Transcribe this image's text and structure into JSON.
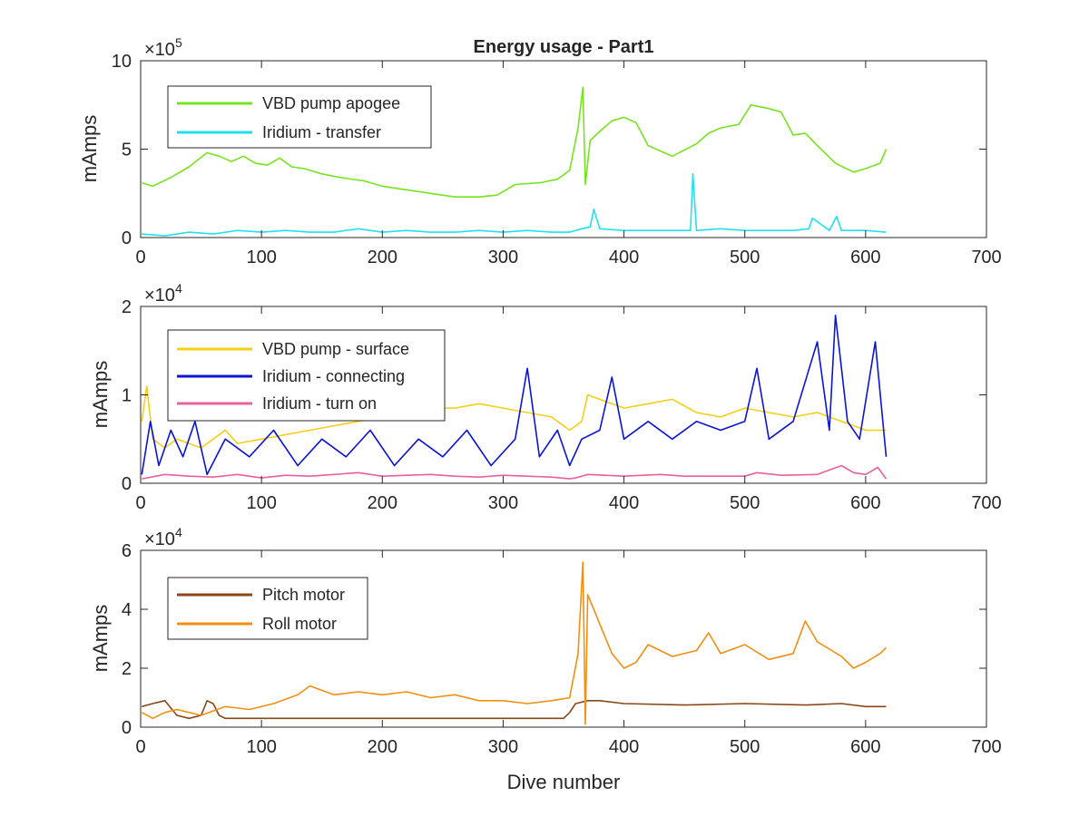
{
  "figure": {
    "title": "Energy usage - Part1",
    "xlabel": "Dive number"
  },
  "chart_data": [
    {
      "type": "line",
      "title": "Energy usage - Part1",
      "xlabel": "",
      "ylabel": "mAmps",
      "exponent_base": "×10",
      "exponent_power": "5",
      "xlim": [
        0,
        700
      ],
      "ylim": [
        0,
        10
      ],
      "xticks": [
        0,
        100,
        200,
        300,
        400,
        500,
        600,
        700
      ],
      "yticks": [
        0,
        5,
        10
      ],
      "legend_position": "top-left",
      "series": [
        {
          "name": "VBD pump apogee",
          "color": "#77e31f",
          "x": [
            1,
            10,
            25,
            40,
            55,
            65,
            75,
            85,
            95,
            105,
            115,
            125,
            135,
            150,
            165,
            185,
            200,
            220,
            240,
            260,
            280,
            295,
            310,
            330,
            345,
            355,
            362,
            366,
            368,
            372,
            380,
            390,
            400,
            410,
            420,
            440,
            460,
            470,
            480,
            495,
            505,
            520,
            530,
            540,
            550,
            560,
            575,
            590,
            600,
            612,
            617
          ],
          "y": [
            3.1,
            2.9,
            3.4,
            4.0,
            4.8,
            4.6,
            4.3,
            4.6,
            4.2,
            4.1,
            4.5,
            4.0,
            3.9,
            3.6,
            3.4,
            3.2,
            2.9,
            2.7,
            2.5,
            2.3,
            2.3,
            2.4,
            3.0,
            3.1,
            3.3,
            3.8,
            6.2,
            8.5,
            3.0,
            5.5,
            6.0,
            6.6,
            6.8,
            6.5,
            5.2,
            4.6,
            5.3,
            5.9,
            6.2,
            6.4,
            7.5,
            7.3,
            7.1,
            5.8,
            5.9,
            5.2,
            4.2,
            3.7,
            3.9,
            4.2,
            5.0
          ]
        },
        {
          "name": "Iridium - transfer",
          "color": "#22e0f0",
          "x": [
            1,
            20,
            40,
            60,
            80,
            100,
            120,
            140,
            160,
            180,
            200,
            220,
            240,
            260,
            280,
            300,
            320,
            340,
            355,
            365,
            372,
            375,
            380,
            400,
            420,
            440,
            455,
            457,
            460,
            480,
            500,
            520,
            540,
            553,
            556,
            570,
            576,
            580,
            600,
            617
          ],
          "y": [
            0.2,
            0.1,
            0.3,
            0.2,
            0.4,
            0.3,
            0.4,
            0.3,
            0.3,
            0.5,
            0.3,
            0.4,
            0.3,
            0.3,
            0.4,
            0.3,
            0.4,
            0.3,
            0.3,
            0.5,
            0.6,
            1.6,
            0.5,
            0.4,
            0.4,
            0.4,
            0.4,
            3.6,
            0.4,
            0.5,
            0.4,
            0.4,
            0.4,
            0.5,
            1.1,
            0.4,
            1.2,
            0.4,
            0.4,
            0.3
          ]
        }
      ]
    },
    {
      "type": "line",
      "title": "",
      "xlabel": "",
      "ylabel": "mAmps",
      "exponent_base": "×10",
      "exponent_power": "4",
      "xlim": [
        0,
        700
      ],
      "ylim": [
        0,
        2
      ],
      "xticks": [
        0,
        100,
        200,
        300,
        400,
        500,
        600,
        700
      ],
      "yticks": [
        0,
        1,
        2
      ],
      "legend_position": "top-left",
      "series": [
        {
          "name": "VBD pump - surface",
          "color": "#f5cf14",
          "x": [
            1,
            5,
            10,
            20,
            30,
            40,
            50,
            60,
            70,
            80,
            100,
            120,
            140,
            160,
            180,
            200,
            220,
            240,
            260,
            280,
            300,
            320,
            340,
            355,
            365,
            370,
            380,
            400,
            420,
            440,
            460,
            480,
            500,
            520,
            540,
            560,
            580,
            600,
            617
          ],
          "y": [
            0.7,
            1.1,
            0.5,
            0.4,
            0.5,
            0.45,
            0.4,
            0.5,
            0.6,
            0.45,
            0.5,
            0.55,
            0.6,
            0.65,
            0.7,
            0.75,
            0.8,
            0.85,
            0.85,
            0.9,
            0.85,
            0.8,
            0.75,
            0.6,
            0.7,
            1.0,
            0.95,
            0.85,
            0.9,
            0.95,
            0.8,
            0.75,
            0.85,
            0.8,
            0.75,
            0.8,
            0.7,
            0.6,
            0.6
          ]
        },
        {
          "name": "Iridium - connecting",
          "color": "#0a14d4",
          "x": [
            1,
            8,
            15,
            25,
            35,
            45,
            55,
            70,
            90,
            110,
            130,
            150,
            170,
            190,
            210,
            230,
            250,
            270,
            290,
            310,
            320,
            330,
            345,
            355,
            365,
            380,
            390,
            400,
            420,
            440,
            460,
            480,
            500,
            510,
            520,
            540,
            560,
            570,
            575,
            585,
            595,
            608,
            617
          ],
          "y": [
            0.1,
            0.7,
            0.2,
            0.6,
            0.3,
            0.7,
            0.1,
            0.5,
            0.3,
            0.6,
            0.2,
            0.5,
            0.3,
            0.6,
            0.2,
            0.5,
            0.3,
            0.6,
            0.2,
            0.5,
            1.3,
            0.3,
            0.6,
            0.2,
            0.5,
            0.6,
            1.2,
            0.5,
            0.7,
            0.5,
            0.7,
            0.6,
            0.7,
            1.3,
            0.5,
            0.7,
            1.6,
            0.6,
            1.9,
            0.7,
            0.5,
            1.6,
            0.3
          ]
        },
        {
          "name": "Iridium - turn on",
          "color": "#e8609f",
          "x": [
            1,
            20,
            40,
            60,
            80,
            100,
            120,
            140,
            160,
            180,
            200,
            220,
            240,
            260,
            280,
            300,
            320,
            340,
            355,
            360,
            370,
            400,
            430,
            450,
            480,
            500,
            510,
            530,
            560,
            580,
            590,
            600,
            610,
            617
          ],
          "y": [
            0.05,
            0.1,
            0.08,
            0.07,
            0.1,
            0.06,
            0.09,
            0.08,
            0.1,
            0.12,
            0.08,
            0.09,
            0.1,
            0.08,
            0.07,
            0.09,
            0.08,
            0.07,
            0.05,
            0.06,
            0.1,
            0.08,
            0.1,
            0.08,
            0.08,
            0.08,
            0.12,
            0.09,
            0.1,
            0.2,
            0.12,
            0.1,
            0.18,
            0.05
          ]
        }
      ]
    },
    {
      "type": "line",
      "title": "",
      "xlabel": "Dive number",
      "ylabel": "mAmps",
      "exponent_base": "×10",
      "exponent_power": "4",
      "xlim": [
        0,
        700
      ],
      "ylim": [
        0,
        6
      ],
      "xticks": [
        0,
        100,
        200,
        300,
        400,
        500,
        600,
        700
      ],
      "yticks": [
        0,
        2,
        4,
        6
      ],
      "legend_position": "top-left",
      "series": [
        {
          "name": "Pitch motor",
          "color": "#8a4617",
          "x": [
            1,
            10,
            20,
            30,
            40,
            50,
            55,
            60,
            65,
            70,
            100,
            150,
            200,
            250,
            300,
            350,
            355,
            360,
            370,
            380,
            400,
            450,
            500,
            550,
            580,
            600,
            617
          ],
          "y": [
            0.7,
            0.8,
            0.9,
            0.4,
            0.3,
            0.4,
            0.9,
            0.8,
            0.4,
            0.3,
            0.3,
            0.3,
            0.3,
            0.3,
            0.3,
            0.3,
            0.5,
            0.8,
            0.9,
            0.9,
            0.8,
            0.75,
            0.8,
            0.75,
            0.8,
            0.7,
            0.7
          ]
        },
        {
          "name": "Roll motor",
          "color": "#f28f10",
          "x": [
            1,
            10,
            20,
            30,
            50,
            70,
            90,
            110,
            130,
            140,
            160,
            180,
            200,
            220,
            240,
            260,
            280,
            300,
            320,
            340,
            355,
            362,
            366,
            368,
            370,
            380,
            390,
            400,
            410,
            420,
            440,
            460,
            470,
            480,
            500,
            520,
            540,
            550,
            560,
            580,
            590,
            600,
            612,
            617
          ],
          "y": [
            0.5,
            0.3,
            0.5,
            0.6,
            0.4,
            0.7,
            0.6,
            0.8,
            1.1,
            1.4,
            1.1,
            1.2,
            1.1,
            1.2,
            1.0,
            1.1,
            0.9,
            0.9,
            0.8,
            0.9,
            1.0,
            2.5,
            5.6,
            0.1,
            4.5,
            3.5,
            2.5,
            2.0,
            2.2,
            2.8,
            2.4,
            2.6,
            3.2,
            2.5,
            2.8,
            2.3,
            2.5,
            3.6,
            2.9,
            2.4,
            2.0,
            2.2,
            2.5,
            2.7
          ]
        }
      ]
    }
  ]
}
